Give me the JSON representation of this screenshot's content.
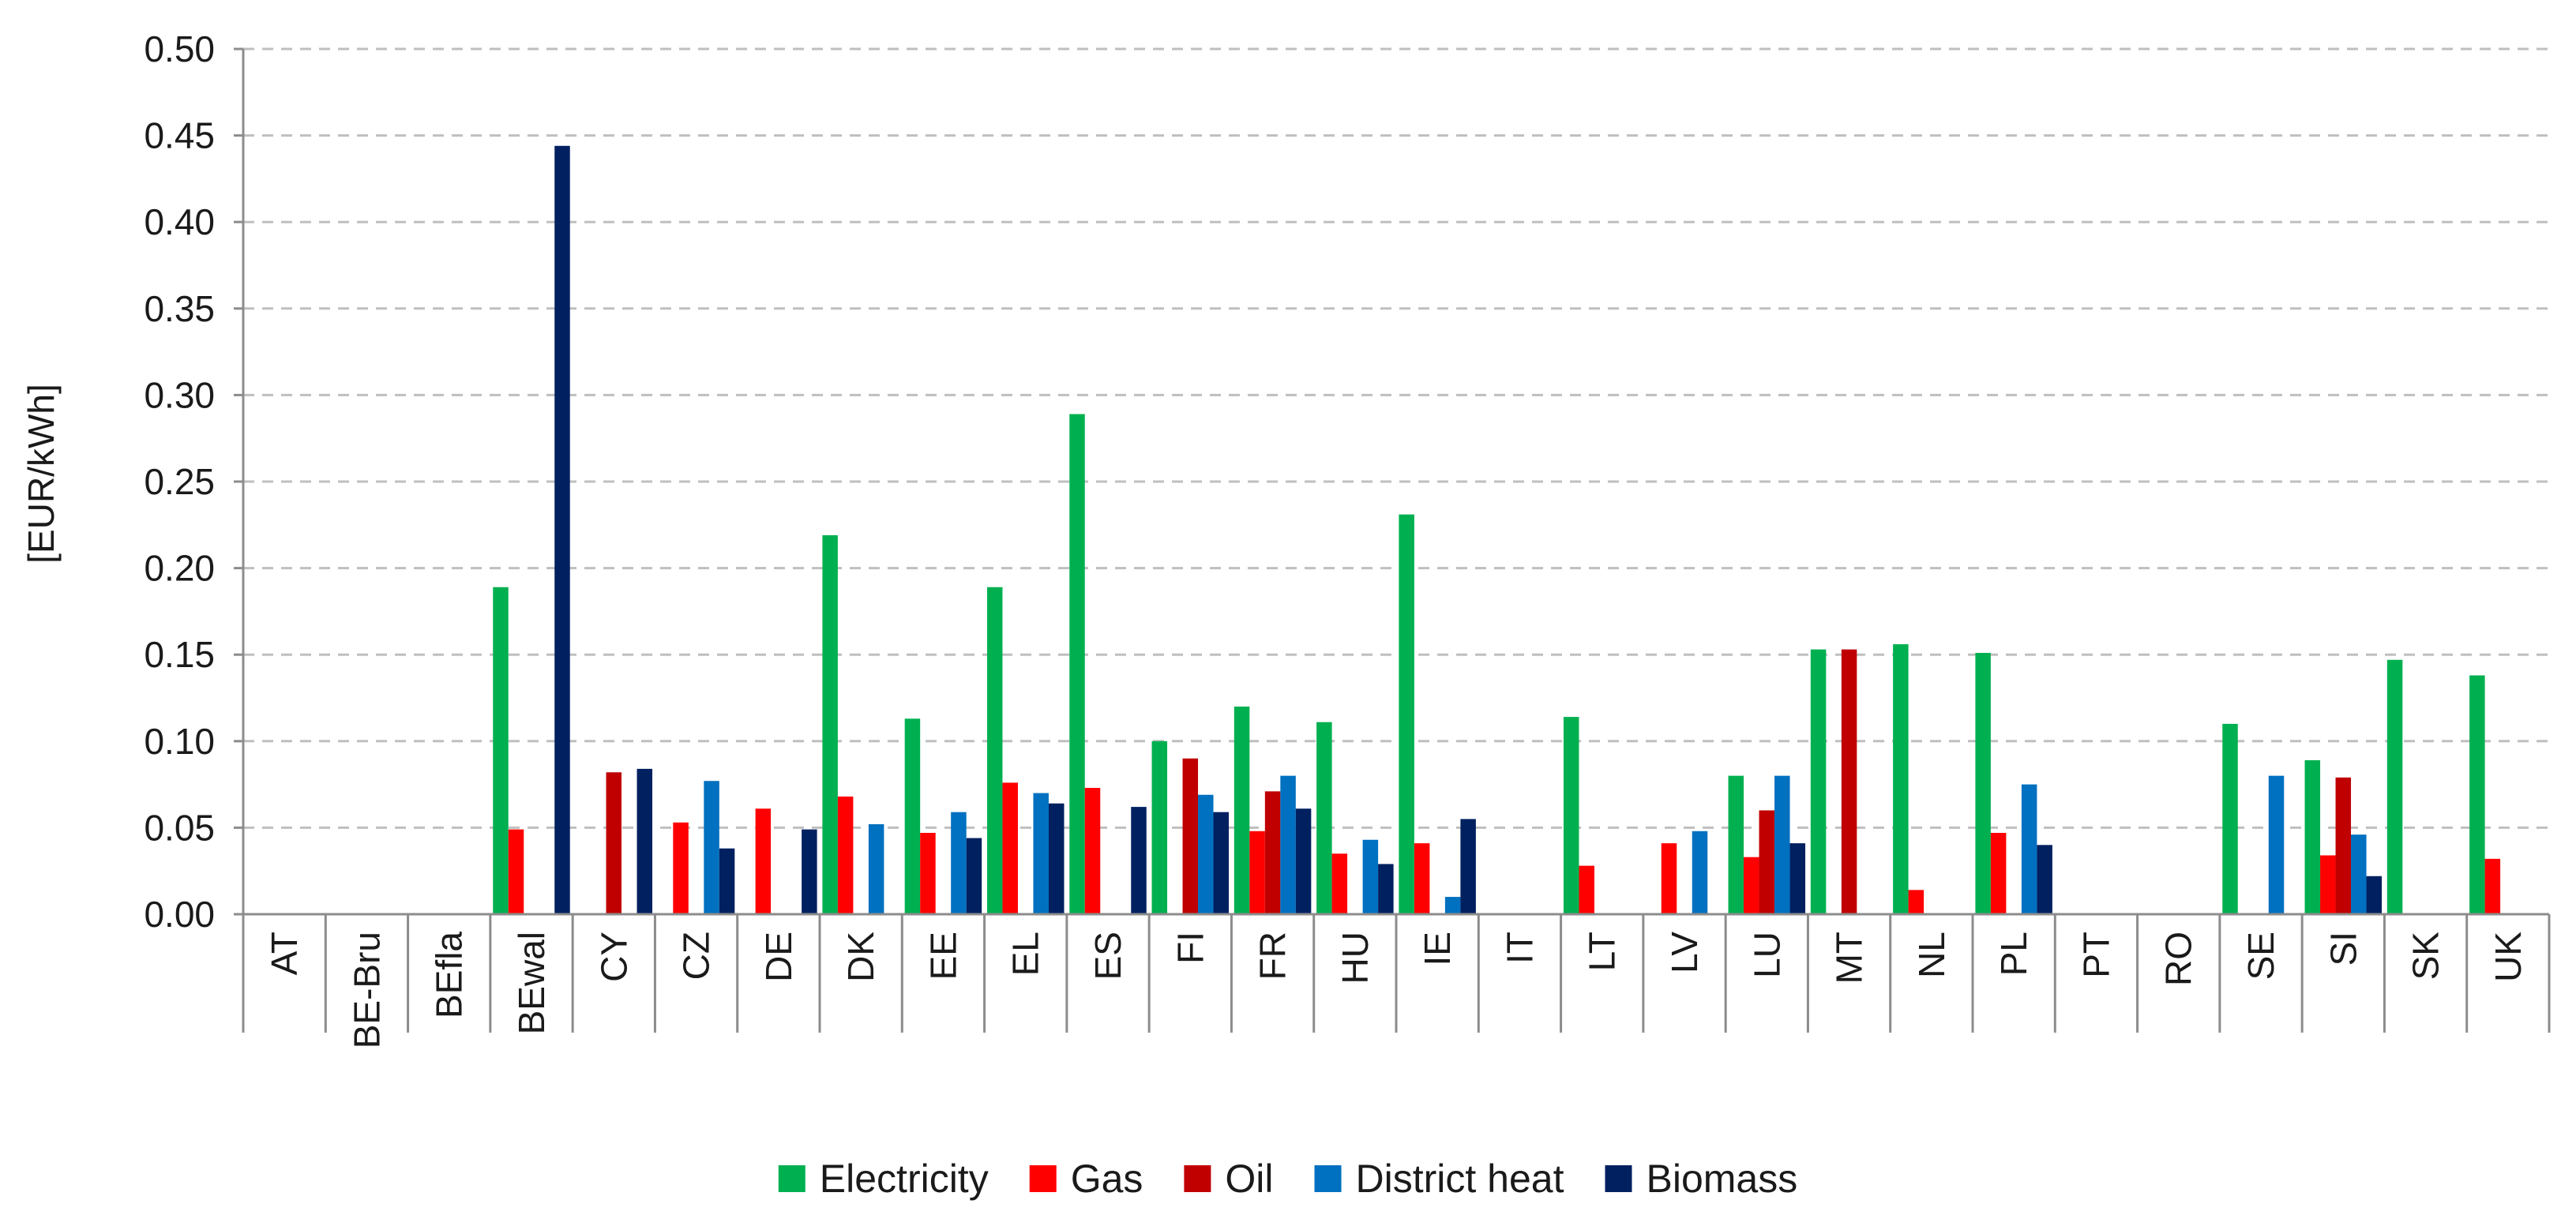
{
  "chart_data": {
    "type": "bar",
    "title": "",
    "xlabel": "",
    "ylabel": "[EUR/kWh]",
    "ylim": [
      0,
      0.5
    ],
    "yticks": [
      "0.00",
      "0.05",
      "0.10",
      "0.15",
      "0.20",
      "0.25",
      "0.30",
      "0.35",
      "0.40",
      "0.45",
      "0.50"
    ],
    "grid": true,
    "legend_position": "bottom",
    "categories": [
      "AT",
      "BE-Bru",
      "BEfla",
      "BEwal",
      "CY",
      "CZ",
      "DE",
      "DK",
      "EE",
      "EL",
      "ES",
      "FI",
      "FR",
      "HU",
      "IE",
      "IT",
      "LT",
      "LV",
      "LU",
      "MT",
      "NL",
      "PL",
      "PT",
      "RO",
      "SE",
      "SI",
      "SK",
      "UK"
    ],
    "series": [
      {
        "name": "Electricity",
        "color": "#00b050",
        "values": [
          null,
          null,
          null,
          0.189,
          null,
          null,
          null,
          0.219,
          0.113,
          0.189,
          0.289,
          0.1,
          0.12,
          0.111,
          0.231,
          null,
          0.114,
          null,
          0.08,
          0.153,
          0.156,
          0.151,
          null,
          null,
          0.11,
          0.089,
          0.147,
          0.138
        ]
      },
      {
        "name": "Gas",
        "color": "#ff0000",
        "values": [
          null,
          null,
          null,
          0.049,
          null,
          0.053,
          0.061,
          0.068,
          0.047,
          0.076,
          0.073,
          null,
          0.048,
          0.035,
          0.041,
          null,
          0.028,
          0.041,
          0.033,
          null,
          0.014,
          0.047,
          null,
          null,
          null,
          0.034,
          null,
          0.032
        ]
      },
      {
        "name": "Oil",
        "color": "#c00000",
        "values": [
          null,
          null,
          null,
          null,
          0.082,
          null,
          null,
          null,
          null,
          null,
          null,
          0.09,
          0.071,
          null,
          null,
          null,
          null,
          null,
          0.06,
          0.153,
          null,
          null,
          null,
          null,
          null,
          0.079,
          null,
          null
        ]
      },
      {
        "name": "District heat",
        "color": "#0070c0",
        "values": [
          null,
          null,
          null,
          null,
          null,
          0.077,
          null,
          0.052,
          0.059,
          0.07,
          null,
          0.069,
          0.08,
          0.043,
          0.01,
          null,
          null,
          0.048,
          0.08,
          null,
          null,
          0.075,
          null,
          null,
          0.08,
          0.046,
          null,
          null
        ]
      },
      {
        "name": "Biomass",
        "color": "#002060",
        "values": [
          null,
          null,
          null,
          0.444,
          0.084,
          0.038,
          0.049,
          null,
          0.044,
          0.064,
          0.062,
          0.059,
          0.061,
          0.029,
          0.055,
          null,
          null,
          null,
          0.041,
          null,
          null,
          0.04,
          null,
          null,
          null,
          0.022,
          null,
          null
        ]
      }
    ]
  }
}
